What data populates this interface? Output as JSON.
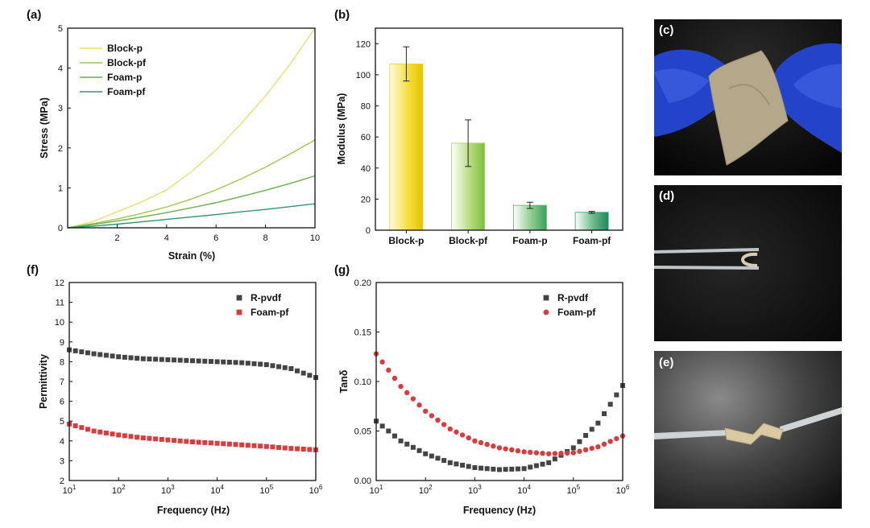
{
  "panels": {
    "a": "(a)",
    "b": "(b)",
    "c": "(c)",
    "d": "(d)",
    "e": "(e)",
    "f": "(f)",
    "g": "(g)"
  },
  "photos": [
    {
      "id": "c",
      "label": "(c)",
      "icon": "gloved-hands-bending-film-photo"
    },
    {
      "id": "d",
      "label": "(d)",
      "icon": "tweezers-folding-film-photo"
    },
    {
      "id": "e",
      "label": "(e)",
      "icon": "tweezers-twisting-film-photo"
    }
  ],
  "chart_data": [
    {
      "id": "a",
      "type": "line",
      "xlabel": "Strain (%)",
      "ylabel": "Stress (MPa)",
      "xlim": [
        0,
        10
      ],
      "ylim": [
        0,
        5
      ],
      "xticks": [
        2,
        4,
        6,
        8,
        10
      ],
      "yticks": [
        0,
        1,
        2,
        3,
        4,
        5
      ],
      "legend_position": "top-left",
      "series": [
        {
          "name": "Block-p",
          "color": "#e8e070",
          "x": [
            0,
            1,
            2,
            3,
            4,
            5,
            6,
            7,
            8,
            9,
            10
          ],
          "y": [
            0,
            0.15,
            0.4,
            0.65,
            0.95,
            1.4,
            1.95,
            2.6,
            3.3,
            4.1,
            5.0
          ]
        },
        {
          "name": "Block-pf",
          "color": "#9cca4a",
          "x": [
            0,
            1,
            2,
            3,
            4,
            5,
            6,
            7,
            8,
            9,
            10
          ],
          "y": [
            0,
            0.1,
            0.22,
            0.36,
            0.52,
            0.72,
            0.95,
            1.22,
            1.52,
            1.85,
            2.2
          ]
        },
        {
          "name": "Foam-p",
          "color": "#6ab04c",
          "x": [
            0,
            1,
            2,
            3,
            4,
            5,
            6,
            7,
            8,
            9,
            10
          ],
          "y": [
            0,
            0.08,
            0.17,
            0.27,
            0.38,
            0.5,
            0.63,
            0.78,
            0.94,
            1.11,
            1.3
          ]
        },
        {
          "name": "Foam-pf",
          "color": "#2e9a68",
          "x": [
            0,
            1,
            2,
            3,
            4,
            5,
            6,
            7,
            8,
            9,
            10
          ],
          "y": [
            0,
            0.04,
            0.09,
            0.15,
            0.21,
            0.27,
            0.33,
            0.4,
            0.46,
            0.53,
            0.6
          ]
        }
      ]
    },
    {
      "id": "b",
      "type": "bar",
      "ylabel": "Modulus (MPa)",
      "ylim": [
        0,
        130
      ],
      "yticks": [
        0,
        20,
        40,
        60,
        80,
        100,
        120
      ],
      "categories": [
        "Block-p",
        "Block-pf",
        "Foam-p",
        "Foam-pf"
      ],
      "values": [
        107,
        56,
        16,
        11.5
      ],
      "errors": [
        11,
        15,
        2,
        0.6
      ],
      "colors": [
        "#f0d020",
        "#a8d060",
        "#58b060",
        "#2e9a68"
      ]
    },
    {
      "id": "f",
      "type": "scatter",
      "xlabel": "Frequency (Hz)",
      "ylabel": "Permittivity",
      "xscale": "log",
      "xlim": [
        10,
        1000000
      ],
      "ylim": [
        2,
        12
      ],
      "xticks": [
        {
          "base": "10",
          "exp": "1"
        },
        {
          "base": "10",
          "exp": "2"
        },
        {
          "base": "10",
          "exp": "3"
        },
        {
          "base": "10",
          "exp": "4"
        },
        {
          "base": "10",
          "exp": "5"
        },
        {
          "base": "10",
          "exp": "6"
        }
      ],
      "yticks": [
        2,
        3,
        4,
        5,
        6,
        7,
        8,
        9,
        10,
        11,
        12
      ],
      "legend_position": "top-right",
      "series": [
        {
          "name": "R-pvdf",
          "marker": "square",
          "color": "#444444",
          "x": [
            10,
            31.6,
            100,
            316,
            1000,
            3160,
            10000,
            31600,
            100000,
            316000,
            1000000
          ],
          "y": [
            8.6,
            8.4,
            8.25,
            8.15,
            8.1,
            8.05,
            8.0,
            7.95,
            7.85,
            7.65,
            7.2
          ]
        },
        {
          "name": "Foam-pf",
          "marker": "square",
          "color": "#d83c3c",
          "x": [
            10,
            31.6,
            100,
            316,
            1000,
            3160,
            10000,
            31600,
            100000,
            316000,
            1000000
          ],
          "y": [
            4.85,
            4.5,
            4.3,
            4.15,
            4.05,
            3.95,
            3.88,
            3.8,
            3.72,
            3.62,
            3.55
          ]
        }
      ]
    },
    {
      "id": "g",
      "type": "scatter",
      "xlabel": "Frequency (Hz)",
      "ylabel": "Tanδ",
      "xscale": "log",
      "xlim": [
        10,
        1000000
      ],
      "ylim": [
        0,
        0.2
      ],
      "xticks": [
        {
          "base": "10",
          "exp": "1"
        },
        {
          "base": "10",
          "exp": "2"
        },
        {
          "base": "10",
          "exp": "3"
        },
        {
          "base": "10",
          "exp": "4"
        },
        {
          "base": "10",
          "exp": "5"
        },
        {
          "base": "10",
          "exp": "6"
        }
      ],
      "yticks": [
        "0.00",
        "0.05",
        "0.10",
        "0.15",
        "0.20"
      ],
      "legend_position": "top-right",
      "series": [
        {
          "name": "R-pvdf",
          "marker": "square",
          "color": "#444444",
          "x": [
            10,
            31.6,
            100,
            316,
            1000,
            3160,
            10000,
            31600,
            100000,
            316000,
            1000000
          ],
          "y": [
            0.06,
            0.04,
            0.027,
            0.018,
            0.013,
            0.011,
            0.012,
            0.018,
            0.033,
            0.058,
            0.096
          ]
        },
        {
          "name": "Foam-pf",
          "marker": "circle",
          "color": "#d83c3c",
          "x": [
            10,
            31.6,
            100,
            316,
            1000,
            3160,
            10000,
            31600,
            100000,
            316000,
            1000000
          ],
          "y": [
            0.128,
            0.095,
            0.07,
            0.052,
            0.04,
            0.033,
            0.029,
            0.027,
            0.028,
            0.034,
            0.045
          ]
        }
      ]
    }
  ]
}
